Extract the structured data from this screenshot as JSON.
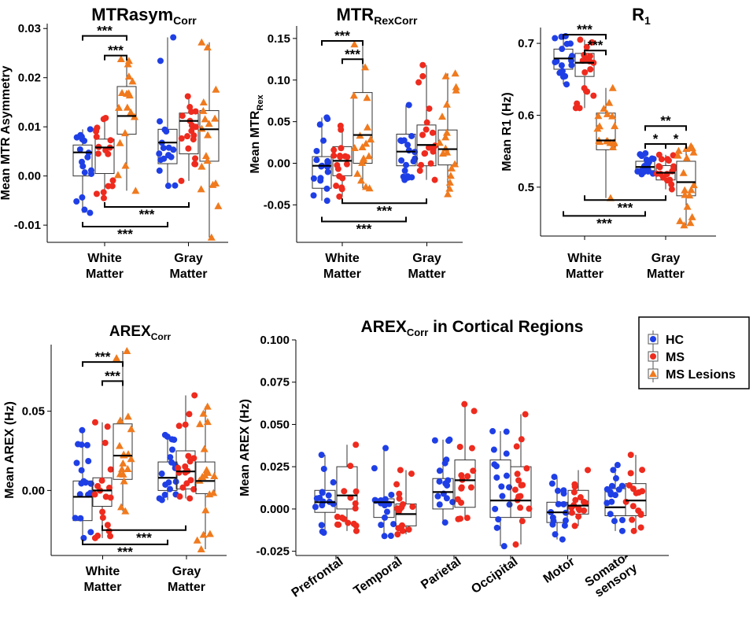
{
  "colors": {
    "hc": "#1f3fe6",
    "ms": "#ee2b1e",
    "lesion": "#f07a1e"
  },
  "legend": {
    "items": [
      {
        "label": "HC",
        "shape": "circle",
        "color": "#1f3fe6"
      },
      {
        "label": "MS",
        "shape": "circle",
        "color": "#ee2b1e"
      },
      {
        "label": "MS Lesions",
        "shape": "triangle",
        "color": "#f07a1e"
      }
    ]
  },
  "chart_data": [
    {
      "type": "box",
      "title": "MTRasym",
      "title_sub": "Corr",
      "ylabel": "Mean MTR Asymmetry",
      "ylim": [
        -0.0135,
        0.031
      ],
      "yticks": [
        -0.01,
        0.0,
        0.01,
        0.02,
        0.03
      ],
      "ytick_labels": [
        "-0.01",
        "0.00",
        "0.01",
        "0.02",
        "0.03"
      ],
      "categories": [
        [
          "White",
          "Matter"
        ],
        [
          "Gray",
          "Matter"
        ]
      ],
      "boxes": [
        {
          "cat": 0,
          "group": "HC",
          "q1": 0.0,
          "median": 0.0048,
          "q3": 0.0063,
          "wlo": -0.0075,
          "whi": 0.0095
        },
        {
          "cat": 0,
          "group": "MS",
          "q1": 0.0005,
          "median": 0.0058,
          "q3": 0.0075,
          "wlo": -0.0045,
          "whi": 0.0118
        },
        {
          "cat": 0,
          "group": "MS Lesions",
          "q1": 0.0085,
          "median": 0.0122,
          "q3": 0.0182,
          "wlo": -0.003,
          "whi": 0.0238
        },
        {
          "cat": 1,
          "group": "HC",
          "q1": 0.0025,
          "median": 0.0068,
          "q3": 0.0095,
          "wlo": -0.002,
          "whi": 0.0282
        },
        {
          "cat": 1,
          "group": "MS",
          "q1": 0.0045,
          "median": 0.0112,
          "q3": 0.0128,
          "wlo": -0.001,
          "whi": 0.0162
        },
        {
          "cat": 1,
          "group": "MS Lesions",
          "q1": 0.003,
          "median": 0.0095,
          "q3": 0.0133,
          "wlo": -0.0125,
          "whi": 0.0272
        }
      ],
      "brackets": [
        {
          "from": [
            0,
            0
          ],
          "to": [
            0,
            2
          ],
          "y": 0.0285,
          "label": "***",
          "side": "top"
        },
        {
          "from": [
            0,
            1
          ],
          "to": [
            0,
            2
          ],
          "y": 0.0245,
          "label": "***",
          "side": "top"
        },
        {
          "from": [
            0,
            1
          ],
          "to": [
            1,
            1
          ],
          "y": -0.0063,
          "label": "***",
          "side": "bottom"
        },
        {
          "from": [
            0,
            0
          ],
          "to": [
            1,
            0
          ],
          "y": -0.0103,
          "label": "***",
          "side": "bottom"
        }
      ]
    },
    {
      "type": "box",
      "title": "MTR",
      "title_sub": "RexCorr",
      "ylabel": "Mean MTR",
      "ylabel_sub": "Rex",
      "ylim": [
        -0.095,
        0.165
      ],
      "yticks": [
        -0.05,
        0.0,
        0.05,
        0.1,
        0.15
      ],
      "ytick_labels": [
        "-0.05",
        "0.00",
        "0.05",
        "0.10",
        "0.15"
      ],
      "categories": [
        [
          "White",
          "Matter"
        ],
        [
          "Gray",
          "Matter"
        ]
      ],
      "boxes": [
        {
          "cat": 0,
          "group": "HC",
          "q1": -0.03,
          "median": -0.003,
          "q3": 0.008,
          "wlo": -0.045,
          "whi": 0.055
        },
        {
          "cat": 0,
          "group": "MS",
          "q1": -0.015,
          "median": 0.003,
          "q3": 0.02,
          "wlo": -0.04,
          "whi": 0.045
        },
        {
          "cat": 0,
          "group": "MS Lesions",
          "q1": 0.0,
          "median": 0.034,
          "q3": 0.085,
          "wlo": -0.03,
          "whi": 0.143
        },
        {
          "cat": 1,
          "group": "HC",
          "q1": -0.003,
          "median": 0.014,
          "q3": 0.035,
          "wlo": -0.02,
          "whi": 0.07
        },
        {
          "cat": 1,
          "group": "MS",
          "q1": -0.003,
          "median": 0.022,
          "q3": 0.046,
          "wlo": -0.02,
          "whi": 0.118
        },
        {
          "cat": 1,
          "group": "MS Lesions",
          "q1": -0.002,
          "median": 0.017,
          "q3": 0.04,
          "wlo": -0.037,
          "whi": 0.108
        }
      ],
      "brackets": [
        {
          "from": [
            0,
            0
          ],
          "to": [
            0,
            2
          ],
          "y": 0.147,
          "label": "***",
          "side": "top"
        },
        {
          "from": [
            0,
            1
          ],
          "to": [
            0,
            2
          ],
          "y": 0.125,
          "label": "***",
          "side": "top"
        },
        {
          "from": [
            0,
            1
          ],
          "to": [
            1,
            1
          ],
          "y": -0.048,
          "label": "***",
          "side": "bottom"
        },
        {
          "from": [
            0,
            0
          ],
          "to": [
            1,
            0
          ],
          "y": -0.07,
          "label": "***",
          "side": "bottom"
        }
      ]
    },
    {
      "type": "box",
      "title": "R",
      "title_sub": "1",
      "ylabel": "Mean R1 (Hz)",
      "ylim": [
        0.432,
        0.722
      ],
      "yticks": [
        0.5,
        0.6,
        0.7
      ],
      "ytick_labels": [
        "0.5",
        "0.6",
        "0.7"
      ],
      "categories": [
        [
          "White",
          "Matter"
        ],
        [
          "Gray",
          "Matter"
        ]
      ],
      "boxes": [
        {
          "cat": 0,
          "group": "HC",
          "q1": 0.664,
          "median": 0.679,
          "q3": 0.692,
          "wlo": 0.643,
          "whi": 0.71
        },
        {
          "cat": 0,
          "group": "MS",
          "q1": 0.654,
          "median": 0.673,
          "q3": 0.686,
          "wlo": 0.61,
          "whi": 0.705
        },
        {
          "cat": 0,
          "group": "MS Lesions",
          "q1": 0.552,
          "median": 0.565,
          "q3": 0.603,
          "wlo": 0.485,
          "whi": 0.638
        },
        {
          "cat": 1,
          "group": "HC",
          "q1": 0.523,
          "median": 0.528,
          "q3": 0.536,
          "wlo": 0.518,
          "whi": 0.547
        },
        {
          "cat": 1,
          "group": "MS",
          "q1": 0.51,
          "median": 0.52,
          "q3": 0.53,
          "wlo": 0.497,
          "whi": 0.545
        },
        {
          "cat": 1,
          "group": "MS Lesions",
          "q1": 0.488,
          "median": 0.507,
          "q3": 0.536,
          "wlo": 0.447,
          "whi": 0.557
        }
      ],
      "brackets": [
        {
          "from": [
            0,
            0
          ],
          "to": [
            0,
            2
          ],
          "y": 0.712,
          "label": "***",
          "side": "top"
        },
        {
          "from": [
            0,
            1
          ],
          "to": [
            0,
            2
          ],
          "y": 0.69,
          "label": "***",
          "side": "top"
        },
        {
          "from": [
            1,
            0
          ],
          "to": [
            1,
            2
          ],
          "y": 0.585,
          "label": "**",
          "side": "top"
        },
        {
          "from": [
            1,
            0
          ],
          "to": [
            1,
            1
          ],
          "y": 0.56,
          "label": "*",
          "side": "top"
        },
        {
          "from": [
            1,
            1
          ],
          "to": [
            1,
            2
          ],
          "y": 0.56,
          "label": "*",
          "side": "top"
        },
        {
          "from": [
            0,
            1
          ],
          "to": [
            1,
            1
          ],
          "y": 0.482,
          "label": "***",
          "side": "bottom"
        },
        {
          "from": [
            0,
            0
          ],
          "to": [
            1,
            0
          ],
          "y": 0.46,
          "label": "***",
          "side": "bottom"
        }
      ]
    },
    {
      "type": "box",
      "title": "AREX",
      "title_sub": "Corr",
      "ylabel": "Mean AREX (Hz)",
      "ylim": [
        -0.041,
        0.092
      ],
      "yticks": [
        0.0,
        0.05
      ],
      "ytick_labels": [
        "0.00",
        "0.05"
      ],
      "categories": [
        [
          "White",
          "Matter"
        ],
        [
          "Gray",
          "Matter"
        ]
      ],
      "boxes": [
        {
          "cat": 0,
          "group": "HC",
          "q1": -0.019,
          "median": -0.004,
          "q3": 0.006,
          "wlo": -0.03,
          "whi": 0.038
        },
        {
          "cat": 0,
          "group": "MS",
          "q1": -0.01,
          "median": 0.0,
          "q3": 0.008,
          "wlo": -0.03,
          "whi": 0.043
        },
        {
          "cat": 0,
          "group": "MS Lesions",
          "q1": 0.007,
          "median": 0.022,
          "q3": 0.042,
          "wlo": -0.013,
          "whi": 0.088
        },
        {
          "cat": 1,
          "group": "HC",
          "q1": 0.0,
          "median": 0.008,
          "q3": 0.018,
          "wlo": -0.006,
          "whi": 0.035
        },
        {
          "cat": 1,
          "group": "MS",
          "q1": 0.001,
          "median": 0.012,
          "q3": 0.025,
          "wlo": -0.005,
          "whi": 0.06
        },
        {
          "cat": 1,
          "group": "MS Lesions",
          "q1": -0.002,
          "median": 0.006,
          "q3": 0.018,
          "wlo": -0.037,
          "whi": 0.053
        }
      ],
      "brackets": [
        {
          "from": [
            0,
            0
          ],
          "to": [
            0,
            2
          ],
          "y": 0.081,
          "label": "***",
          "side": "top"
        },
        {
          "from": [
            0,
            1
          ],
          "to": [
            0,
            2
          ],
          "y": 0.069,
          "label": "***",
          "side": "top"
        },
        {
          "from": [
            0,
            1
          ],
          "to": [
            1,
            1
          ],
          "y": -0.025,
          "label": "***",
          "side": "bottom"
        },
        {
          "from": [
            0,
            0
          ],
          "to": [
            1,
            0
          ],
          "y": -0.034,
          "label": "***",
          "side": "bottom"
        }
      ]
    },
    {
      "type": "box",
      "title": "AREX",
      "title_sub": "Corr",
      "title_rest": " in Cortical Regions",
      "ylabel": "Mean AREX (Hz)",
      "ylim": [
        -0.0275,
        0.1
      ],
      "yticks": [
        -0.025,
        0.0,
        0.025,
        0.05,
        0.075,
        0.1
      ],
      "ytick_labels": [
        "-0.025",
        "0.000",
        "0.025",
        "0.050",
        "0.075",
        "0.100"
      ],
      "categories": [
        "Prefrontal",
        "Temporal",
        "Parietal",
        "Occipital",
        "Motor",
        "Somato-sensory"
      ],
      "category_lines": [
        [
          "Prefrontal"
        ],
        [
          "Temporal"
        ],
        [
          "Parietal"
        ],
        [
          "Occipital"
        ],
        [
          "Motor"
        ],
        [
          "Somato-",
          "sensory"
        ]
      ],
      "boxes": [
        {
          "cat": 0,
          "group": "HC",
          "q1": -0.002,
          "median": 0.004,
          "q3": 0.011,
          "wlo": -0.014,
          "whi": 0.032
        },
        {
          "cat": 0,
          "group": "MS",
          "q1": 0.0,
          "median": 0.008,
          "q3": 0.025,
          "wlo": -0.013,
          "whi": 0.038
        },
        {
          "cat": 1,
          "group": "HC",
          "q1": -0.005,
          "median": 0.004,
          "q3": 0.006,
          "wlo": -0.016,
          "whi": 0.036
        },
        {
          "cat": 1,
          "group": "MS",
          "q1": -0.01,
          "median": -0.003,
          "q3": 0.003,
          "wlo": -0.015,
          "whi": 0.023
        },
        {
          "cat": 2,
          "group": "HC",
          "q1": 0.0,
          "median": 0.01,
          "q3": 0.018,
          "wlo": -0.008,
          "whi": 0.041
        },
        {
          "cat": 2,
          "group": "MS",
          "q1": 0.001,
          "median": 0.017,
          "q3": 0.029,
          "wlo": -0.006,
          "whi": 0.062
        },
        {
          "cat": 3,
          "group": "HC",
          "q1": -0.005,
          "median": 0.005,
          "q3": 0.029,
          "wlo": -0.022,
          "whi": 0.046
        },
        {
          "cat": 3,
          "group": "MS",
          "q1": -0.005,
          "median": 0.005,
          "q3": 0.025,
          "wlo": -0.021,
          "whi": 0.056
        },
        {
          "cat": 4,
          "group": "HC",
          "q1": -0.008,
          "median": -0.002,
          "q3": 0.004,
          "wlo": -0.018,
          "whi": 0.019
        },
        {
          "cat": 4,
          "group": "MS",
          "q1": -0.003,
          "median": 0.002,
          "q3": 0.011,
          "wlo": -0.01,
          "whi": 0.023
        },
        {
          "cat": 5,
          "group": "HC",
          "q1": -0.004,
          "median": 0.001,
          "q3": 0.012,
          "wlo": -0.013,
          "whi": 0.026
        },
        {
          "cat": 5,
          "group": "MS",
          "q1": -0.004,
          "median": 0.005,
          "q3": 0.015,
          "wlo": -0.013,
          "whi": 0.032
        }
      ],
      "brackets": []
    }
  ]
}
